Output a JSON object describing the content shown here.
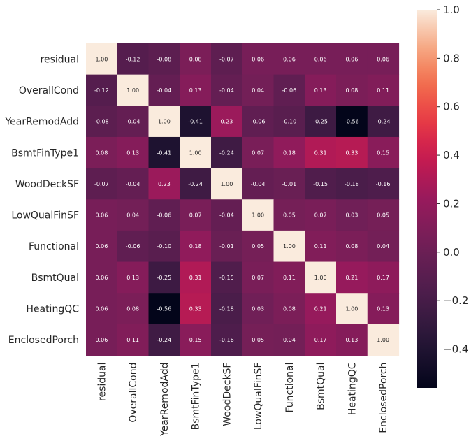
{
  "chart_data": {
    "type": "heatmap",
    "title": "",
    "labels": [
      "residual",
      "OverallCond",
      "YearRemodAdd",
      "BsmtFinType1",
      "WoodDeckSF",
      "LowQualFinSF",
      "Functional",
      "BsmtQual",
      "HeatingQC",
      "EnclosedPorch"
    ],
    "matrix": [
      [
        1.0,
        -0.12,
        -0.08,
        0.08,
        -0.07,
        0.06,
        0.06,
        0.06,
        0.06,
        0.06
      ],
      [
        -0.12,
        1.0,
        -0.04,
        0.13,
        -0.04,
        0.04,
        -0.06,
        0.13,
        0.08,
        0.11
      ],
      [
        -0.08,
        -0.04,
        1.0,
        -0.41,
        0.23,
        -0.06,
        -0.1,
        -0.25,
        -0.56,
        -0.24
      ],
      [
        0.08,
        0.13,
        -0.41,
        1.0,
        -0.24,
        0.07,
        0.18,
        0.31,
        0.33,
        0.15
      ],
      [
        -0.07,
        -0.04,
        0.23,
        -0.24,
        1.0,
        -0.04,
        -0.01,
        -0.15,
        -0.18,
        -0.16
      ],
      [
        0.06,
        0.04,
        -0.06,
        0.07,
        -0.04,
        1.0,
        0.05,
        0.07,
        0.03,
        0.05
      ],
      [
        0.06,
        -0.06,
        -0.1,
        0.18,
        -0.01,
        0.05,
        1.0,
        0.11,
        0.08,
        0.04
      ],
      [
        0.06,
        0.13,
        -0.25,
        0.31,
        -0.15,
        0.07,
        0.11,
        1.0,
        0.21,
        0.17
      ],
      [
        0.06,
        0.08,
        -0.56,
        0.33,
        -0.18,
        0.03,
        0.08,
        0.21,
        1.0,
        0.13
      ],
      [
        0.06,
        0.11,
        -0.24,
        0.15,
        -0.16,
        0.05,
        0.04,
        0.17,
        0.13,
        1.0
      ]
    ],
    "colorbar": {
      "min": -0.56,
      "max": 1.0,
      "ticks": [
        1.0,
        0.8,
        0.6,
        0.4,
        0.2,
        0.0,
        -0.2,
        -0.4
      ],
      "tick_labels": [
        "1.0",
        "0.8",
        "0.6",
        "0.4",
        "0.2",
        "0.0",
        "−0.2",
        "−0.4"
      ],
      "colormap": "rocket"
    },
    "annotation_format": "0.00"
  }
}
